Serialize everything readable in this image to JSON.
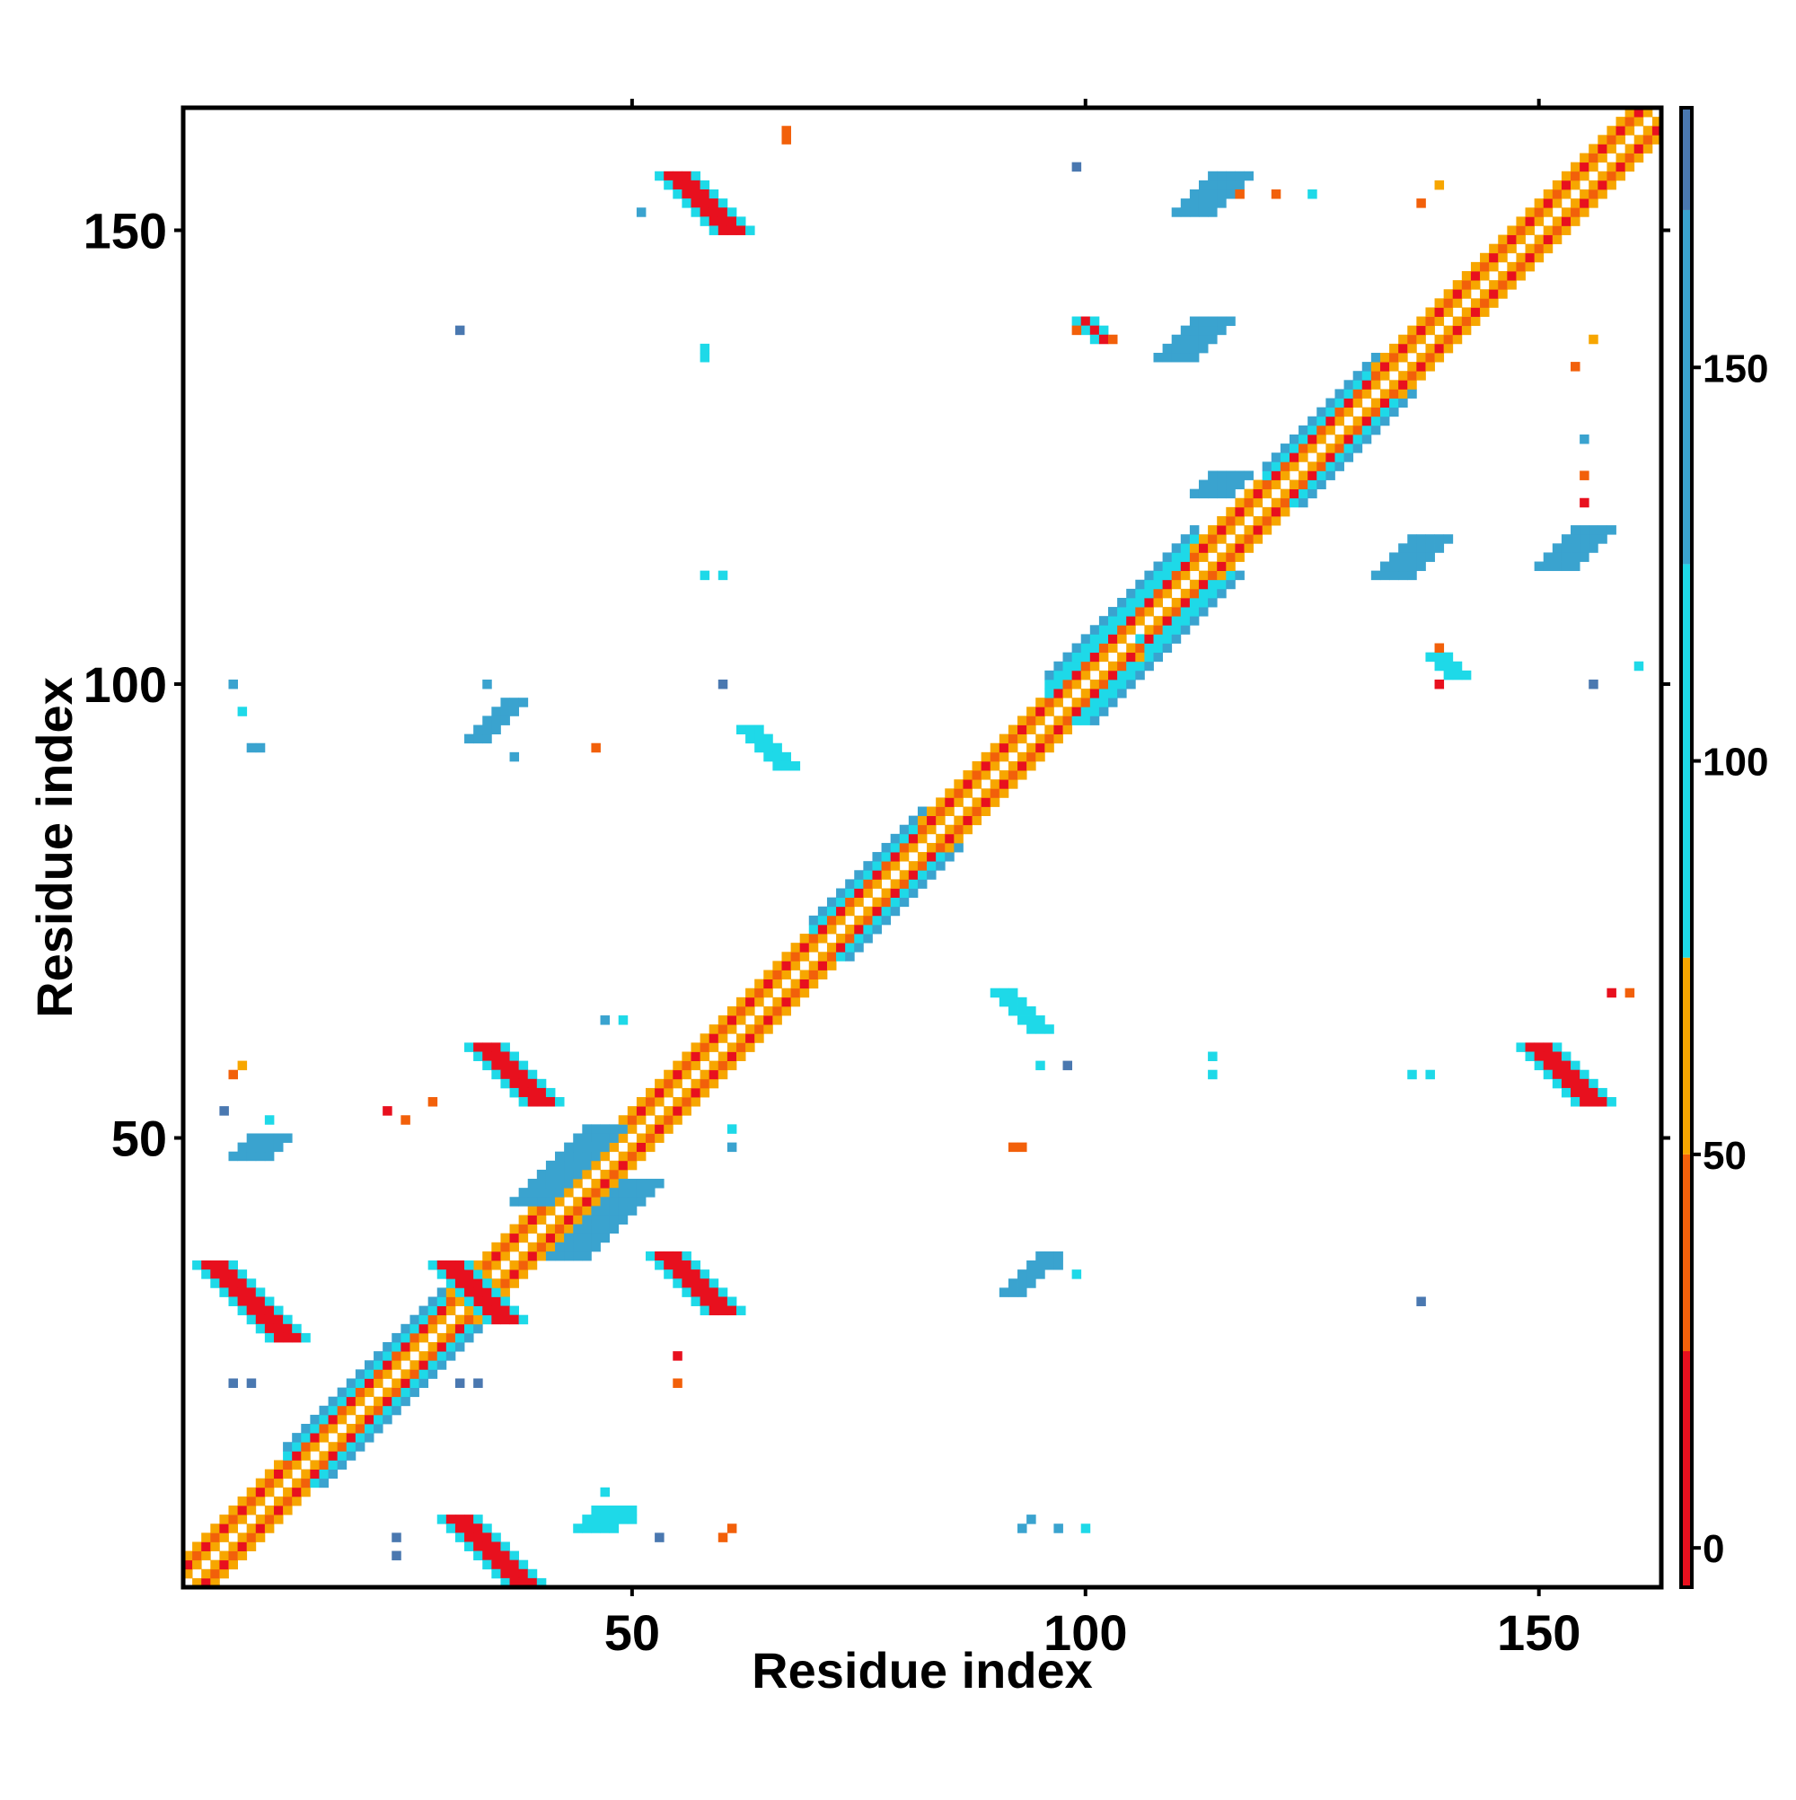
{
  "chart_data": {
    "type": "heatmap",
    "title": "",
    "xlabel": "Residue index",
    "ylabel": "Residue index",
    "xlim": [
      1,
      163
    ],
    "ylim": [
      1,
      163
    ],
    "xticks": [
      50,
      100,
      150
    ],
    "yticks": [
      50,
      100,
      150
    ],
    "grid": false,
    "symmetric": true,
    "colorbar": {
      "ticks": [
        0,
        50,
        100,
        150
      ],
      "range": [
        -5,
        183
      ],
      "bands": [
        {
          "from": -5,
          "to": 25,
          "color": "#e8101e"
        },
        {
          "from": 25,
          "to": 50,
          "color": "#f2600a"
        },
        {
          "from": 50,
          "to": 75,
          "color": "#f7a600"
        },
        {
          "from": 75,
          "to": 125,
          "color": "#1ed9e8"
        },
        {
          "from": 125,
          "to": 170,
          "color": "#3aa3cf"
        },
        {
          "from": 170,
          "to": 183,
          "color": "#4a78b0"
        }
      ],
      "top_color": "#ffffff"
    },
    "diagonal": {
      "segments": [
        {
          "from": 1,
          "to": 12,
          "halfwidth": 3,
          "side": "orange"
        },
        {
          "from": 12,
          "to": 30,
          "halfwidth": 4,
          "side": "cyan"
        },
        {
          "from": 30,
          "to": 46,
          "halfwidth": 3,
          "side": "orange"
        },
        {
          "from": 46,
          "to": 70,
          "halfwidth": 3,
          "side": "orange"
        },
        {
          "from": 70,
          "to": 82,
          "halfwidth": 4,
          "side": "cyan"
        },
        {
          "from": 82,
          "to": 96,
          "halfwidth": 3,
          "side": "orange"
        },
        {
          "from": 96,
          "to": 112,
          "halfwidth": 5,
          "side": "cyan"
        },
        {
          "from": 112,
          "to": 120,
          "halfwidth": 3,
          "side": "orange"
        },
        {
          "from": 120,
          "to": 132,
          "halfwidth": 4,
          "side": "cyan"
        },
        {
          "from": 132,
          "to": 163,
          "halfwidth": 3,
          "side": "orange"
        }
      ]
    },
    "blobs": [
      {
        "cx": 35,
        "cy": 4,
        "len": 8,
        "w": 2,
        "orient": "anti",
        "value": 10
      },
      {
        "cx": 8,
        "cy": 32,
        "len": 8,
        "w": 2,
        "orient": "anti",
        "value": 10
      },
      {
        "cx": 58,
        "cy": 153,
        "len": 7,
        "w": 2,
        "orient": "anti",
        "value": 10
      },
      {
        "cx": 33,
        "cy": 33,
        "len": 6,
        "w": 2,
        "orient": "anti",
        "value": 5
      },
      {
        "cx": 37,
        "cy": 57,
        "len": 6,
        "w": 2,
        "orient": "anti",
        "value": 10
      },
      {
        "cx": 57,
        "cy": 34,
        "len": 7,
        "w": 2,
        "orient": "anti",
        "value": 10
      },
      {
        "cx": 153,
        "cy": 57,
        "len": 6,
        "w": 2,
        "orient": "anti",
        "value": 10
      },
      {
        "cx": 43,
        "cy": 47,
        "len": 8,
        "w": 2,
        "orient": "diag",
        "value": 140
      },
      {
        "cx": 47,
        "cy": 41,
        "len": 8,
        "w": 2,
        "orient": "diag",
        "value": 140
      },
      {
        "cx": 114,
        "cy": 154,
        "len": 5,
        "w": 2,
        "orient": "diag",
        "value": 140
      },
      {
        "cx": 112,
        "cy": 138,
        "len": 5,
        "w": 2,
        "orient": "diag",
        "value": 140
      },
      {
        "cx": 136,
        "cy": 114,
        "len": 5,
        "w": 2,
        "orient": "diag",
        "value": 140
      },
      {
        "cx": 154,
        "cy": 115,
        "len": 5,
        "w": 2,
        "orient": "diag",
        "value": 140
      },
      {
        "cx": 9,
        "cy": 49,
        "len": 3,
        "w": 2,
        "orient": "diag",
        "value": 140
      },
      {
        "cx": 47,
        "cy": 8,
        "len": 3,
        "w": 2,
        "orient": "diag",
        "value": 100
      },
      {
        "cx": 35,
        "cy": 96,
        "len": 4,
        "w": 1,
        "orient": "diag",
        "value": 140
      },
      {
        "cx": 65,
        "cy": 93,
        "len": 4,
        "w": 1,
        "orient": "anti",
        "value": 120
      },
      {
        "cx": 93,
        "cy": 64,
        "len": 4,
        "w": 1,
        "orient": "anti",
        "value": 110
      },
      {
        "cx": 94,
        "cy": 35,
        "len": 4,
        "w": 1,
        "orient": "diag",
        "value": 140
      },
      {
        "cx": 115,
        "cy": 122,
        "len": 3,
        "w": 2,
        "orient": "diag",
        "value": 140
      },
      {
        "cx": 101,
        "cy": 139,
        "len": 3,
        "w": 1,
        "orient": "anti",
        "value": 20
      },
      {
        "cx": 140,
        "cy": 102,
        "len": 3,
        "w": 1,
        "orient": "anti",
        "value": 110
      }
    ],
    "points": [
      {
        "x": 6,
        "y": 100,
        "value": 140
      },
      {
        "x": 7,
        "y": 97,
        "value": 100
      },
      {
        "x": 8,
        "y": 93,
        "value": 140
      },
      {
        "x": 9,
        "y": 93,
        "value": 140
      },
      {
        "x": 34,
        "y": 100,
        "value": 140
      },
      {
        "x": 37,
        "y": 92,
        "value": 140
      },
      {
        "x": 46,
        "y": 93,
        "value": 40
      },
      {
        "x": 60,
        "y": 100,
        "value": 170
      },
      {
        "x": 58,
        "y": 112,
        "value": 100
      },
      {
        "x": 60,
        "y": 112,
        "value": 100
      },
      {
        "x": 58,
        "y": 137,
        "value": 100
      },
      {
        "x": 58,
        "y": 136,
        "value": 100
      },
      {
        "x": 31,
        "y": 139,
        "value": 170
      },
      {
        "x": 67,
        "y": 161,
        "value": 40
      },
      {
        "x": 67,
        "y": 160,
        "value": 30
      },
      {
        "x": 51,
        "y": 152,
        "value": 140
      },
      {
        "x": 99,
        "y": 157,
        "value": 170
      },
      {
        "x": 103,
        "y": 164,
        "value": 100
      },
      {
        "x": 117,
        "y": 154,
        "value": 40
      },
      {
        "x": 121,
        "y": 154,
        "value": 40
      },
      {
        "x": 125,
        "y": 154,
        "value": 100
      },
      {
        "x": 137,
        "y": 153,
        "value": 40
      },
      {
        "x": 139,
        "y": 155,
        "value": 60
      },
      {
        "x": 99,
        "y": 139,
        "value": 30
      },
      {
        "x": 103,
        "y": 138,
        "value": 40
      },
      {
        "x": 156,
        "y": 138,
        "value": 60
      },
      {
        "x": 154,
        "y": 135,
        "value": 40
      },
      {
        "x": 155,
        "y": 127,
        "value": 140
      },
      {
        "x": 155,
        "y": 123,
        "value": 30
      },
      {
        "x": 155,
        "y": 120,
        "value": 20
      },
      {
        "x": 161,
        "y": 102,
        "value": 100
      },
      {
        "x": 156,
        "y": 100,
        "value": 170
      },
      {
        "x": 139,
        "y": 100,
        "value": 20
      },
      {
        "x": 139,
        "y": 104,
        "value": 40
      },
      {
        "x": 106,
        "y": 103,
        "value": 50
      },
      {
        "x": 106,
        "y": 105,
        "value": 110
      },
      {
        "x": 114,
        "y": 59,
        "value": 100
      },
      {
        "x": 114,
        "y": 57,
        "value": 100
      },
      {
        "x": 136,
        "y": 57,
        "value": 100
      },
      {
        "x": 138,
        "y": 57,
        "value": 100
      },
      {
        "x": 98,
        "y": 58,
        "value": 170
      },
      {
        "x": 95,
        "y": 58,
        "value": 100
      },
      {
        "x": 158,
        "y": 66,
        "value": 20
      },
      {
        "x": 160,
        "y": 66,
        "value": 30
      },
      {
        "x": 93,
        "y": 49,
        "value": 40
      },
      {
        "x": 92,
        "y": 49,
        "value": 40
      },
      {
        "x": 97,
        "y": 36,
        "value": 140
      },
      {
        "x": 99,
        "y": 35,
        "value": 100
      },
      {
        "x": 137,
        "y": 32,
        "value": 170
      },
      {
        "x": 94,
        "y": 8,
        "value": 140
      },
      {
        "x": 93,
        "y": 7,
        "value": 140
      },
      {
        "x": 97,
        "y": 7,
        "value": 140
      },
      {
        "x": 100,
        "y": 7,
        "value": 100
      },
      {
        "x": 61,
        "y": 7,
        "value": 40
      },
      {
        "x": 60,
        "y": 6,
        "value": 30
      },
      {
        "x": 53,
        "y": 6,
        "value": 170
      },
      {
        "x": 50,
        "y": 8,
        "value": 100
      },
      {
        "x": 47,
        "y": 11,
        "value": 100
      },
      {
        "x": 24,
        "y": 6,
        "value": 170
      },
      {
        "x": 24,
        "y": 4,
        "value": 170
      },
      {
        "x": 6,
        "y": 23,
        "value": 170
      },
      {
        "x": 8,
        "y": 23,
        "value": 170
      },
      {
        "x": 31,
        "y": 23,
        "value": 170
      },
      {
        "x": 33,
        "y": 23,
        "value": 170
      },
      {
        "x": 55,
        "y": 23,
        "value": 40
      },
      {
        "x": 55,
        "y": 26,
        "value": 20
      },
      {
        "x": 6,
        "y": 57,
        "value": 40
      },
      {
        "x": 7,
        "y": 58,
        "value": 60
      },
      {
        "x": 5,
        "y": 53,
        "value": 170
      },
      {
        "x": 10,
        "y": 52,
        "value": 100
      },
      {
        "x": 23,
        "y": 53,
        "value": 20
      },
      {
        "x": 25,
        "y": 52,
        "value": 40
      },
      {
        "x": 28,
        "y": 54,
        "value": 40
      },
      {
        "x": 47,
        "y": 63,
        "value": 140
      },
      {
        "x": 49,
        "y": 63,
        "value": 100
      },
      {
        "x": 61,
        "y": 49,
        "value": 140
      },
      {
        "x": 61,
        "y": 51,
        "value": 100
      }
    ]
  }
}
